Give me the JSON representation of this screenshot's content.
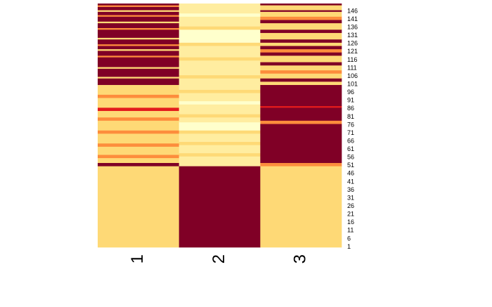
{
  "chart_data": {
    "type": "heatmap",
    "title": "",
    "xlabel": "",
    "ylabel": "",
    "columns": [
      "1",
      "2",
      "3"
    ],
    "row_tick_labels": [
      "1",
      "6",
      "11",
      "16",
      "21",
      "26",
      "31",
      "36",
      "41",
      "46",
      "51",
      "56",
      "61",
      "66",
      "71",
      "76",
      "81",
      "86",
      "91",
      "96",
      "101",
      "106",
      "111",
      "116",
      "121",
      "126",
      "131",
      "136",
      "141",
      "146"
    ],
    "n_rows": 150,
    "legend": "none",
    "palette": [
      "#800026",
      "#e31a1c",
      "#fd8d3c",
      "#fed976",
      "#ffeda0",
      "#ffffcc"
    ],
    "segments": {
      "1": [
        {
          "from": 1,
          "to": 50,
          "level": 3
        },
        {
          "from": 51,
          "to": 52,
          "level": 0
        },
        {
          "from": 53,
          "to": 55,
          "level": 3
        },
        {
          "from": 56,
          "to": 57,
          "level": 2
        },
        {
          "from": 58,
          "to": 62,
          "level": 3
        },
        {
          "from": 63,
          "to": 64,
          "level": 2
        },
        {
          "from": 65,
          "to": 70,
          "level": 3
        },
        {
          "from": 71,
          "to": 72,
          "level": 2
        },
        {
          "from": 73,
          "to": 78,
          "level": 3
        },
        {
          "from": 79,
          "to": 80,
          "level": 2
        },
        {
          "from": 81,
          "to": 84,
          "level": 3
        },
        {
          "from": 85,
          "to": 86,
          "level": 1
        },
        {
          "from": 87,
          "to": 92,
          "level": 3
        },
        {
          "from": 93,
          "to": 94,
          "level": 2
        },
        {
          "from": 95,
          "to": 100,
          "level": 3
        },
        {
          "from": 101,
          "to": 104,
          "level": 0
        },
        {
          "from": 105,
          "to": 105,
          "level": 3
        },
        {
          "from": 106,
          "to": 110,
          "level": 0
        },
        {
          "from": 111,
          "to": 111,
          "level": 3
        },
        {
          "from": 112,
          "to": 117,
          "level": 0
        },
        {
          "from": 118,
          "to": 118,
          "level": 2
        },
        {
          "from": 119,
          "to": 121,
          "level": 0
        },
        {
          "from": 122,
          "to": 122,
          "level": 3
        },
        {
          "from": 123,
          "to": 124,
          "level": 0
        },
        {
          "from": 125,
          "to": 125,
          "level": 2
        },
        {
          "from": 126,
          "to": 128,
          "level": 0
        },
        {
          "from": 129,
          "to": 129,
          "level": 3
        },
        {
          "from": 130,
          "to": 134,
          "level": 0
        },
        {
          "from": 135,
          "to": 135,
          "level": 2
        },
        {
          "from": 136,
          "to": 138,
          "level": 0
        },
        {
          "from": 139,
          "to": 139,
          "level": 3
        },
        {
          "from": 140,
          "to": 142,
          "level": 0
        },
        {
          "from": 143,
          "to": 143,
          "level": 2
        },
        {
          "from": 144,
          "to": 145,
          "level": 0
        },
        {
          "from": 146,
          "to": 146,
          "level": 3
        },
        {
          "from": 147,
          "to": 148,
          "level": 0
        },
        {
          "from": 149,
          "to": 149,
          "level": 2
        },
        {
          "from": 150,
          "to": 150,
          "level": 0
        }
      ],
      "2": [
        {
          "from": 1,
          "to": 50,
          "level": 0
        },
        {
          "from": 51,
          "to": 56,
          "level": 4
        },
        {
          "from": 57,
          "to": 58,
          "level": 3
        },
        {
          "from": 59,
          "to": 63,
          "level": 4
        },
        {
          "from": 64,
          "to": 65,
          "level": 3
        },
        {
          "from": 66,
          "to": 70,
          "level": 4
        },
        {
          "from": 71,
          "to": 72,
          "level": 3
        },
        {
          "from": 73,
          "to": 77,
          "level": 5
        },
        {
          "from": 78,
          "to": 80,
          "level": 4
        },
        {
          "from": 81,
          "to": 82,
          "level": 3
        },
        {
          "from": 83,
          "to": 88,
          "level": 4
        },
        {
          "from": 89,
          "to": 90,
          "level": 5
        },
        {
          "from": 91,
          "to": 95,
          "level": 4
        },
        {
          "from": 96,
          "to": 97,
          "level": 3
        },
        {
          "from": 98,
          "to": 100,
          "level": 4
        },
        {
          "from": 101,
          "to": 104,
          "level": 4
        },
        {
          "from": 105,
          "to": 106,
          "level": 3
        },
        {
          "from": 107,
          "to": 115,
          "level": 4
        },
        {
          "from": 116,
          "to": 117,
          "level": 3
        },
        {
          "from": 118,
          "to": 124,
          "level": 4
        },
        {
          "from": 125,
          "to": 126,
          "level": 3
        },
        {
          "from": 127,
          "to": 134,
          "level": 5
        },
        {
          "from": 135,
          "to": 136,
          "level": 3
        },
        {
          "from": 137,
          "to": 142,
          "level": 4
        },
        {
          "from": 143,
          "to": 144,
          "level": 5
        },
        {
          "from": 145,
          "to": 150,
          "level": 4
        }
      ],
      "3": [
        {
          "from": 1,
          "to": 50,
          "level": 3
        },
        {
          "from": 51,
          "to": 52,
          "level": 2
        },
        {
          "from": 53,
          "to": 76,
          "level": 0
        },
        {
          "from": 77,
          "to": 78,
          "level": 2
        },
        {
          "from": 79,
          "to": 86,
          "level": 0
        },
        {
          "from": 87,
          "to": 87,
          "level": 1
        },
        {
          "from": 88,
          "to": 100,
          "level": 0
        },
        {
          "from": 101,
          "to": 102,
          "level": 3
        },
        {
          "from": 103,
          "to": 104,
          "level": 0
        },
        {
          "from": 105,
          "to": 107,
          "level": 3
        },
        {
          "from": 108,
          "to": 109,
          "level": 2
        },
        {
          "from": 110,
          "to": 112,
          "level": 3
        },
        {
          "from": 113,
          "to": 114,
          "level": 0
        },
        {
          "from": 115,
          "to": 118,
          "level": 3
        },
        {
          "from": 119,
          "to": 120,
          "level": 0
        },
        {
          "from": 121,
          "to": 122,
          "level": 2
        },
        {
          "from": 123,
          "to": 124,
          "level": 0
        },
        {
          "from": 125,
          "to": 126,
          "level": 3
        },
        {
          "from": 127,
          "to": 128,
          "level": 0
        },
        {
          "from": 129,
          "to": 132,
          "level": 3
        },
        {
          "from": 133,
          "to": 134,
          "level": 0
        },
        {
          "from": 135,
          "to": 138,
          "level": 3
        },
        {
          "from": 139,
          "to": 140,
          "level": 0
        },
        {
          "from": 141,
          "to": 142,
          "level": 2
        },
        {
          "from": 143,
          "to": 145,
          "level": 3
        },
        {
          "from": 146,
          "to": 146,
          "level": 0
        },
        {
          "from": 147,
          "to": 149,
          "level": 3
        },
        {
          "from": 150,
          "to": 150,
          "level": 0
        }
      ]
    }
  }
}
